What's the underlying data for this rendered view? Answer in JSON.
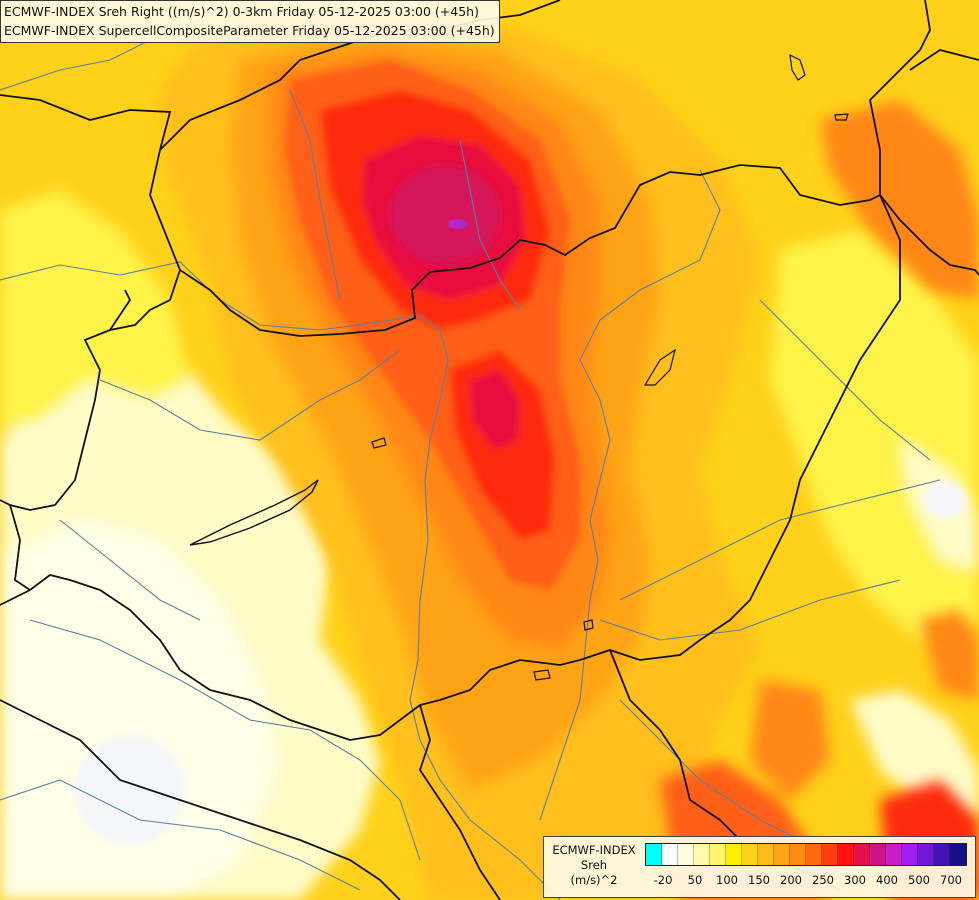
{
  "map": {
    "title_line1": "ECMWF-INDEX Sreh Right ((m/s)^2) 0-3km Friday 05-12-2025 03:00 (+45h)",
    "title_line2": "ECMWF-INDEX SupercellCompositeParameter Friday 05-12-2025 03:00 (+45h)",
    "field_colors": {
      "background": "#ffd11a",
      "pale": "#fffcc8",
      "very_pale": "#ffffe8",
      "white_patch": "#f6f7fb",
      "light_yellow": "#fff34a",
      "orange_light": "#ffbf1a",
      "orange": "#ffa319",
      "orange_dark": "#ff8712",
      "red_orange": "#ff5e12",
      "red": "#ff2a0f",
      "crimson": "#e8103c",
      "magenta_red": "#d6145a",
      "purple_core": "#b328c8",
      "border_line": "#111111",
      "river_line": "#5b7f9e"
    }
  },
  "legend": {
    "line1": "ECMWF-INDEX",
    "line2": "Sreh",
    "line3": "(m/s)^2",
    "colors": [
      "#00ffff",
      "#ffffff",
      "#fffce0",
      "#fff9a8",
      "#fff56b",
      "#ffee00",
      "#ffd21a",
      "#ffbd17",
      "#ffa514",
      "#ff8a10",
      "#ff6a0e",
      "#ff3d0d",
      "#ff1010",
      "#e5104a",
      "#cc1488",
      "#c81ec8",
      "#9e1ff0",
      "#7318d6",
      "#4512b8",
      "#14108a"
    ],
    "tick_labels": [
      "-20",
      "50",
      "100",
      "150",
      "200",
      "250",
      "300",
      "400",
      "500",
      "700"
    ]
  }
}
